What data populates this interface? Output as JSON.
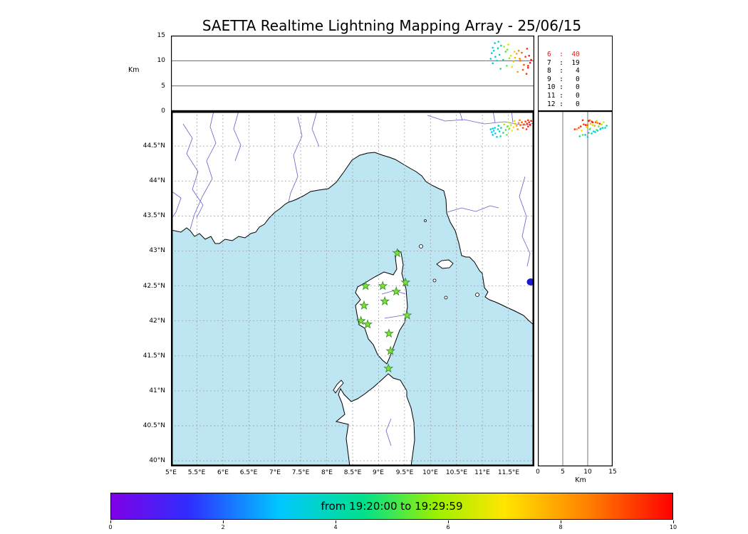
{
  "alt_axis": {
    "label": "Km",
    "max": 15,
    "ticks": [
      0,
      5,
      10,
      15
    ],
    "grid": [
      5,
      10
    ]
  },
  "map_axis": {
    "lon_min": 5,
    "lon_max": 12,
    "lat_min": 39.92,
    "lat_max": 45,
    "lat_ticks": [
      {
        "v": 44.5,
        "label": "44.5°N"
      },
      {
        "v": 44,
        "label": "44°N"
      },
      {
        "v": 43.5,
        "label": "43.5°N"
      },
      {
        "v": 43,
        "label": "43°N"
      },
      {
        "v": 42.5,
        "label": "42.5°N"
      },
      {
        "v": 42,
        "label": "42°N"
      },
      {
        "v": 41.5,
        "label": "41.5°N"
      },
      {
        "v": 41,
        "label": "41°N"
      },
      {
        "v": 40.5,
        "label": "40.5°N"
      },
      {
        "v": 40,
        "label": "40°N"
      }
    ],
    "lon_ticks": [
      {
        "v": 5,
        "label": "5°E"
      },
      {
        "v": 5.5,
        "label": "5.5°E"
      },
      {
        "v": 6,
        "label": "6°E"
      },
      {
        "v": 6.5,
        "label": "6.5°E"
      },
      {
        "v": 7,
        "label": "7°E"
      },
      {
        "v": 7.5,
        "label": "7.5°E"
      },
      {
        "v": 8,
        "label": "8°E"
      },
      {
        "v": 8.5,
        "label": "8.5°E"
      },
      {
        "v": 9,
        "label": "9°E"
      },
      {
        "v": 9.5,
        "label": "9.5°E"
      },
      {
        "v": 10,
        "label": "10°E"
      },
      {
        "v": 10.5,
        "label": "10.5°E"
      },
      {
        "v": 11,
        "label": "11°E"
      },
      {
        "v": 11.5,
        "label": "11.5°E"
      }
    ]
  },
  "colorbar": {
    "label": "from 19:20:00 to 19:29:59",
    "min": 0,
    "max": 10,
    "ticks": [
      0,
      2,
      4,
      6,
      8,
      10
    ],
    "stops": [
      {
        "p": 0.0,
        "c": "#7f00e6"
      },
      {
        "p": 0.14,
        "c": "#2e2eff"
      },
      {
        "p": 0.3,
        "c": "#00c8ff"
      },
      {
        "p": 0.45,
        "c": "#00e08c"
      },
      {
        "p": 0.58,
        "c": "#9cf000"
      },
      {
        "p": 0.7,
        "c": "#ffe600"
      },
      {
        "p": 0.85,
        "c": "#ff8000"
      },
      {
        "p": 1.0,
        "c": "#ff0000"
      }
    ]
  },
  "colors": {
    "sea": "#bde5f2",
    "land": "#ffffff",
    "coast": "#000000",
    "river": "#6060d0",
    "grid": "#999999",
    "station_fill": "#7fe22e",
    "station_edge": "#2e8b2e",
    "lake": "#1a1ac8",
    "count_highlight": "#dd2222"
  },
  "chart_data": {
    "type": "scatter",
    "title": "SAETTA Realtime Lightning Mapping Array - 25/06/15",
    "date": "25/06/15",
    "time_window": {
      "start": "19:20:00",
      "end": "19:29:59"
    },
    "panels": [
      {
        "id": "altitude-vs-longitude",
        "x": "longitude_degE",
        "y": "altitude_km",
        "xlim": [
          5,
          12
        ],
        "ylim": [
          0,
          15
        ],
        "grid_y": [
          5,
          10
        ]
      },
      {
        "id": "map-lon-lat",
        "x": "longitude_degE",
        "y": "latitude_degN",
        "xlim": [
          5,
          12
        ],
        "ylim": [
          39.92,
          45
        ],
        "grid_step_deg": 0.5
      },
      {
        "id": "altitude-vs-latitude",
        "x": "altitude_km",
        "y": "latitude_degN",
        "xlim": [
          0,
          15
        ],
        "ylim": [
          39.92,
          45
        ],
        "grid_x": [
          5,
          10
        ]
      }
    ],
    "stations_lonlat": [
      [
        9.36,
        42.97
      ],
      [
        8.75,
        42.5
      ],
      [
        9.08,
        42.5
      ],
      [
        9.34,
        42.42
      ],
      [
        9.52,
        42.55
      ],
      [
        8.72,
        42.22
      ],
      [
        9.12,
        42.28
      ],
      [
        8.66,
        42.0
      ],
      [
        8.79,
        41.95
      ],
      [
        9.55,
        42.08
      ],
      [
        9.2,
        41.82
      ],
      [
        9.23,
        41.57
      ],
      [
        9.19,
        41.32
      ]
    ],
    "sources_columns": [
      "lon_degE",
      "lat_degN",
      "alt_km",
      "minutes_after_1920"
    ],
    "sources": [
      [
        11.18,
        44.7,
        11.5,
        3.0
      ],
      [
        11.22,
        44.72,
        12.0,
        3.2
      ],
      [
        11.25,
        44.68,
        10.8,
        3.4
      ],
      [
        11.3,
        44.74,
        12.5,
        3.6
      ],
      [
        11.33,
        44.71,
        11.2,
        3.8
      ],
      [
        11.36,
        44.76,
        13.0,
        4.0
      ],
      [
        11.4,
        44.69,
        10.2,
        4.3
      ],
      [
        11.2,
        44.66,
        9.5,
        2.8
      ],
      [
        11.28,
        44.63,
        10.0,
        3.1
      ],
      [
        11.16,
        44.74,
        10.4,
        2.9
      ],
      [
        11.24,
        44.76,
        13.5,
        3.3
      ],
      [
        11.31,
        44.79,
        13.8,
        3.9
      ],
      [
        11.2,
        44.75,
        12.6,
        3.5
      ],
      [
        11.45,
        44.73,
        11.8,
        5.0
      ],
      [
        11.48,
        44.78,
        12.2,
        5.3
      ],
      [
        11.52,
        44.75,
        10.5,
        5.6
      ],
      [
        11.42,
        44.81,
        12.8,
        5.9
      ],
      [
        11.47,
        44.66,
        9.0,
        5.2
      ],
      [
        11.55,
        44.8,
        11.0,
        6.2
      ],
      [
        11.5,
        44.84,
        13.2,
        6.5
      ],
      [
        11.57,
        44.72,
        8.8,
        6.8
      ],
      [
        11.35,
        44.64,
        8.4,
        4.6
      ],
      [
        11.6,
        44.77,
        9.8,
        7.1
      ],
      [
        11.62,
        44.86,
        11.8,
        7.4
      ],
      [
        11.63,
        44.82,
        10.6,
        7.7
      ],
      [
        11.66,
        44.79,
        11.4,
        8.0
      ],
      [
        11.68,
        44.74,
        7.8,
        8.2
      ],
      [
        11.7,
        44.83,
        12.0,
        8.4
      ],
      [
        11.72,
        44.87,
        10.4,
        8.6
      ],
      [
        11.73,
        44.8,
        10.0,
        8.8
      ],
      [
        11.76,
        44.84,
        11.6,
        9.0
      ],
      [
        11.78,
        44.76,
        8.2,
        9.1
      ],
      [
        11.8,
        44.81,
        9.2,
        9.2
      ],
      [
        11.83,
        44.85,
        10.8,
        9.3
      ],
      [
        11.85,
        44.74,
        7.4,
        9.4
      ],
      [
        11.86,
        44.82,
        12.4,
        9.5
      ],
      [
        11.88,
        44.78,
        8.6,
        9.6
      ],
      [
        11.9,
        44.84,
        11.0,
        9.7
      ],
      [
        11.92,
        44.8,
        9.6,
        9.8
      ],
      [
        11.94,
        44.86,
        10.2,
        9.9
      ],
      [
        11.88,
        44.87,
        9.0,
        9.6
      ]
    ],
    "station_count_histogram": {
      "categories": [
        6,
        7,
        8,
        9,
        10,
        11,
        12
      ],
      "values": [
        40,
        19,
        4,
        0,
        0,
        0,
        0
      ],
      "highlight_category": 6
    }
  }
}
